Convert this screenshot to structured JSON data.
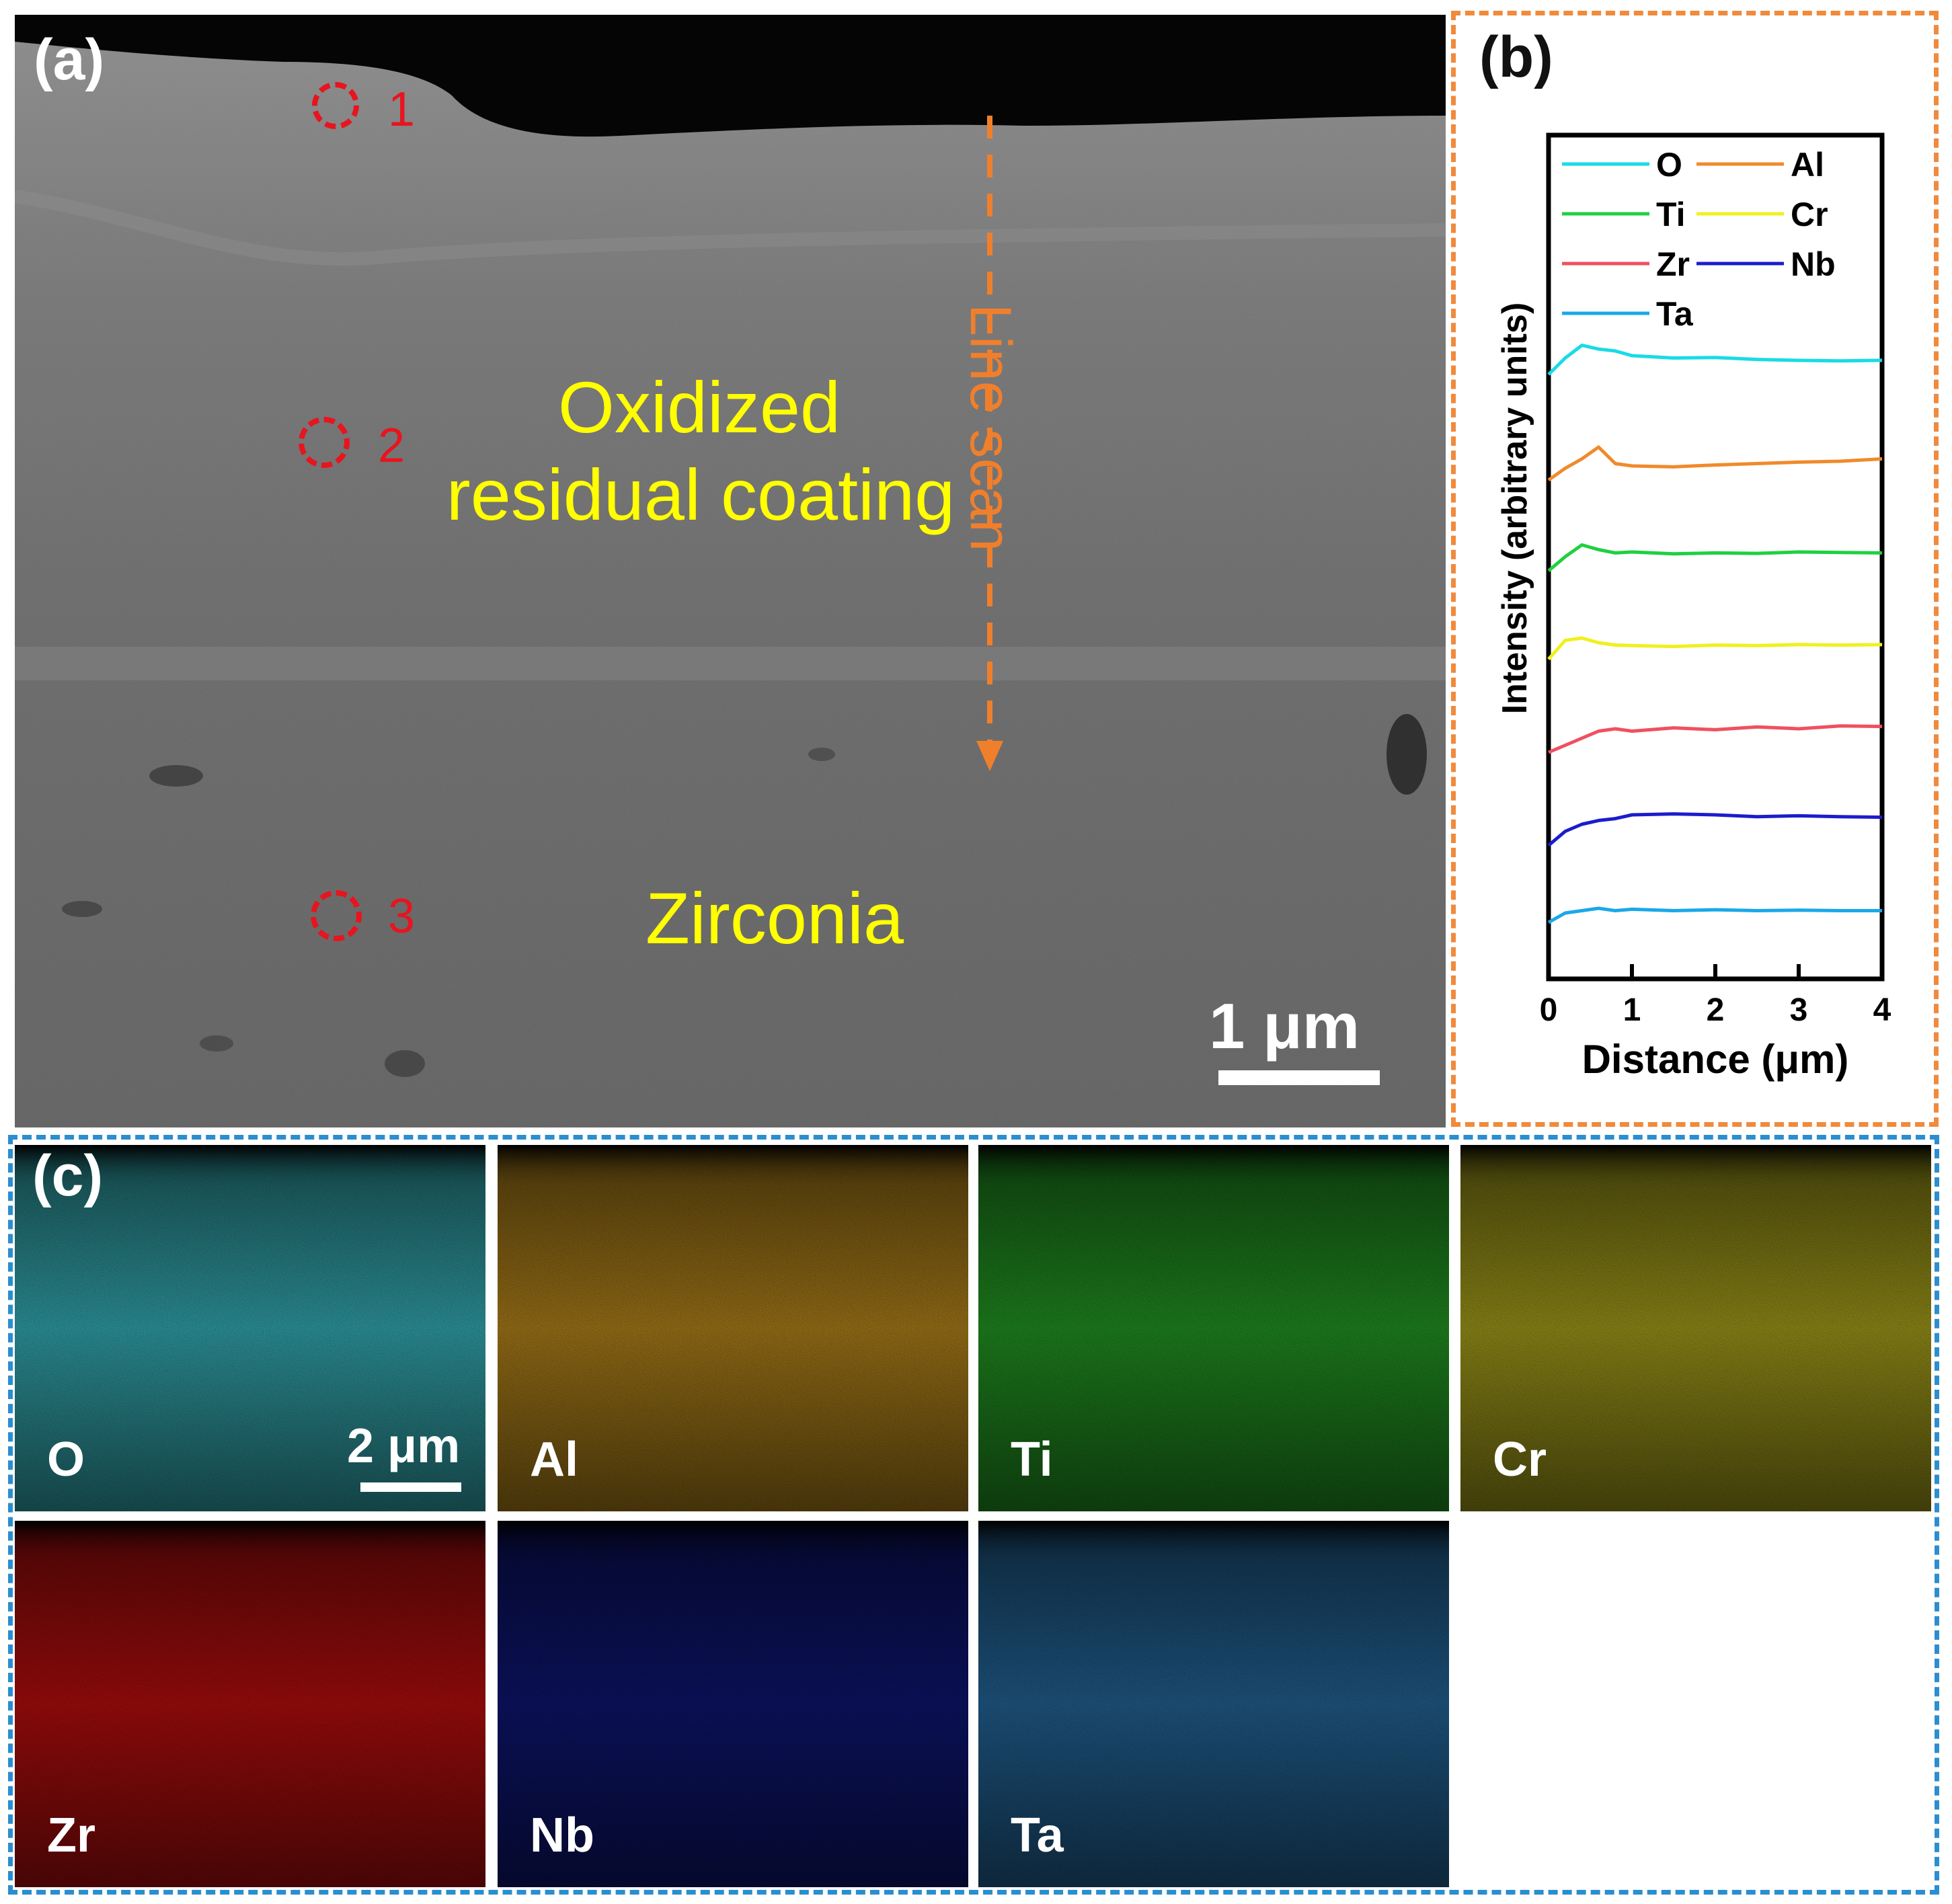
{
  "panel_a": {
    "label": "(a)",
    "region_top": "Oxidized",
    "region_top_2": "residual coating",
    "region_bottom": "Zirconia",
    "line_scan_label": "Line scan",
    "scale_bar": "1 μm",
    "points": [
      "1",
      "2",
      "3"
    ],
    "colors": {
      "annotation": "#ffff00",
      "marker": "#e8141e",
      "line_scan": "#f07f2c"
    }
  },
  "panel_b": {
    "label": "(b)",
    "chart_data": {
      "type": "line",
      "title": "",
      "xlabel": "Distance (μm)",
      "ylabel": "Intensity (arbitrary units)",
      "xlim": [
        0,
        4
      ],
      "x_ticks": [
        "0",
        "1",
        "2",
        "3",
        "4"
      ],
      "y_ticks": [],
      "legend_placement": "top",
      "series": [
        {
          "name": "O",
          "color": "#19dbe6",
          "x": [
            0,
            0.2,
            0.4,
            0.6,
            0.8,
            1.0,
            1.5,
            2.0,
            2.5,
            3.0,
            3.5,
            4.0
          ],
          "values": [
            0.2,
            0.55,
            0.82,
            0.74,
            0.7,
            0.6,
            0.55,
            0.56,
            0.52,
            0.5,
            0.49,
            0.5
          ]
        },
        {
          "name": "Al",
          "color": "#f08a2c",
          "x": [
            0,
            0.2,
            0.4,
            0.6,
            0.8,
            1.0,
            1.5,
            2.0,
            2.5,
            3.0,
            3.5,
            4.0
          ],
          "values": [
            0.1,
            0.35,
            0.55,
            0.8,
            0.45,
            0.4,
            0.38,
            0.42,
            0.45,
            0.48,
            0.5,
            0.55
          ]
        },
        {
          "name": "Ti",
          "color": "#20d040",
          "x": [
            0,
            0.2,
            0.4,
            0.6,
            0.8,
            1.0,
            1.5,
            2.0,
            2.5,
            3.0,
            3.5,
            4.0
          ],
          "values": [
            0.1,
            0.4,
            0.65,
            0.55,
            0.48,
            0.5,
            0.46,
            0.48,
            0.47,
            0.5,
            0.49,
            0.48
          ]
        },
        {
          "name": "Cr",
          "color": "#f0f020",
          "x": [
            0,
            0.2,
            0.4,
            0.6,
            0.8,
            1.0,
            1.5,
            2.0,
            2.5,
            3.0,
            3.5,
            4.0
          ],
          "values": [
            0.15,
            0.55,
            0.6,
            0.5,
            0.45,
            0.44,
            0.42,
            0.45,
            0.44,
            0.46,
            0.45,
            0.46
          ]
        },
        {
          "name": "Zr",
          "color": "#f05060",
          "x": [
            0,
            0.2,
            0.4,
            0.6,
            0.8,
            1.0,
            1.5,
            2.0,
            2.5,
            3.0,
            3.5,
            4.0
          ],
          "values": [
            0.1,
            0.25,
            0.4,
            0.55,
            0.6,
            0.55,
            0.62,
            0.58,
            0.64,
            0.6,
            0.66,
            0.65
          ]
        },
        {
          "name": "Nb",
          "color": "#1c1ccc",
          "x": [
            0,
            0.2,
            0.4,
            0.6,
            0.8,
            1.0,
            1.5,
            2.0,
            2.5,
            3.0,
            3.5,
            4.0
          ],
          "values": [
            0.05,
            0.35,
            0.5,
            0.58,
            0.62,
            0.7,
            0.72,
            0.7,
            0.66,
            0.68,
            0.66,
            0.65
          ]
        },
        {
          "name": "Ta",
          "color": "#1aa8e8",
          "x": [
            0,
            0.2,
            0.4,
            0.6,
            0.8,
            1.0,
            1.5,
            2.0,
            2.5,
            3.0,
            3.5,
            4.0
          ],
          "values": [
            0.2,
            0.4,
            0.45,
            0.5,
            0.45,
            0.48,
            0.45,
            0.47,
            0.45,
            0.46,
            0.45,
            0.45
          ]
        }
      ]
    }
  },
  "panel_c": {
    "label": "(c)",
    "scale_bar": "2 μm",
    "maps": [
      {
        "element": "O",
        "color": "#3fd3dc"
      },
      {
        "element": "Al",
        "color": "#d9a020"
      },
      {
        "element": "Ti",
        "color": "#2ab82a"
      },
      {
        "element": "Cr",
        "color": "#c8c020"
      },
      {
        "element": "Zr",
        "color": "#e01010"
      },
      {
        "element": "Nb",
        "color": "#101a8a"
      },
      {
        "element": "Ta",
        "color": "#2a7ab8"
      }
    ]
  },
  "frame_colors": {
    "b": "#f08a3c",
    "c": "#2a8ed0"
  }
}
